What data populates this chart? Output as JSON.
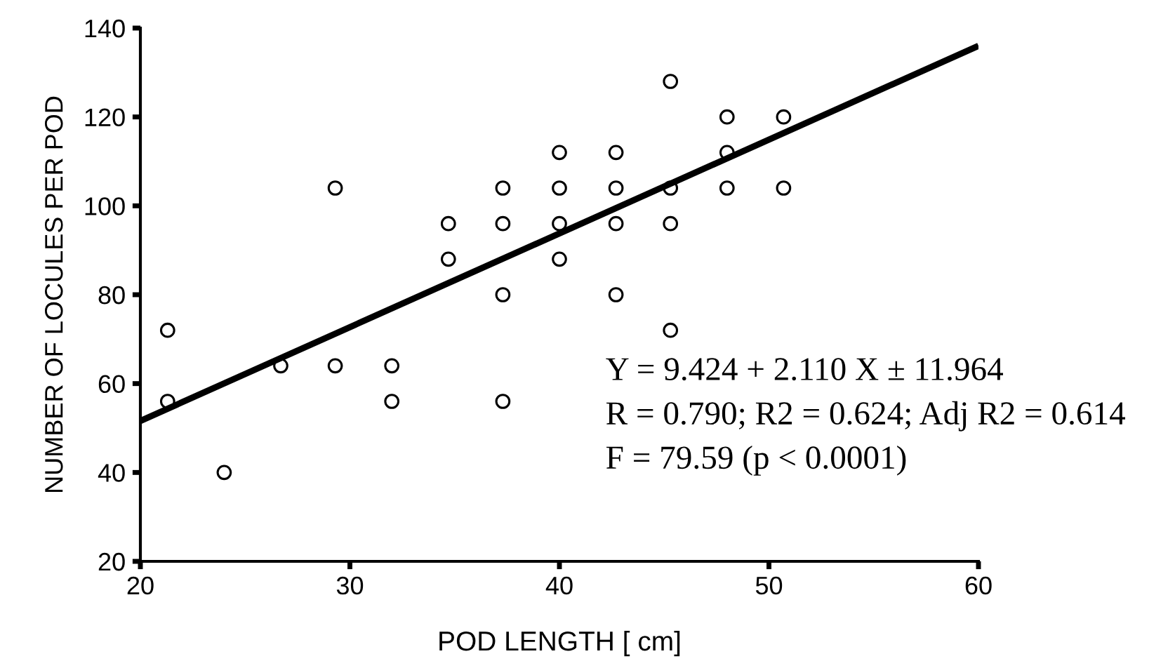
{
  "chart_data": {
    "type": "scatter",
    "xlabel": "POD LENGTH [ cm]",
    "ylabel": "NUMBER OF LOCULES PER POD",
    "series": [
      {
        "color": "#000000",
        "marker": "circle",
        "x": [
          21.3,
          21.3,
          24,
          26.7,
          29.3,
          29.3,
          32,
          32,
          34.7,
          34.7,
          37.3,
          37.3,
          37.3,
          37.3,
          40,
          40,
          40,
          40,
          42.7,
          42.7,
          42.7,
          42.7,
          45.3,
          45.3,
          45.3,
          45.3,
          48,
          48,
          48,
          50.7,
          50.7
        ],
        "values": [
          72,
          56,
          40,
          64,
          104,
          64,
          64,
          56,
          96,
          88,
          104,
          96,
          80,
          56,
          112,
          104,
          96,
          88,
          112,
          104,
          96,
          80,
          128,
          104,
          96,
          72,
          120,
          112,
          104,
          120,
          104
        ]
      },
      {
        "type": "line",
        "color": "#000000",
        "line_style": "solid",
        "x": [
          20,
          60
        ],
        "values": [
          51.6,
          136.0
        ]
      }
    ],
    "xlim": [
      20,
      60
    ],
    "xticks": [
      20,
      30,
      40,
      50,
      60
    ],
    "ylim": [
      20,
      140
    ],
    "yticks": [
      20,
      40,
      60,
      80,
      100,
      120,
      140
    ],
    "grid": false,
    "annotations": [
      "Y = 9.424 + 2.110 X ± 11.964",
      "R = 0.790; R2 = 0.624; Adj R2 = 0.614",
      "F = 79.59 (p < 0.0001)"
    ]
  }
}
